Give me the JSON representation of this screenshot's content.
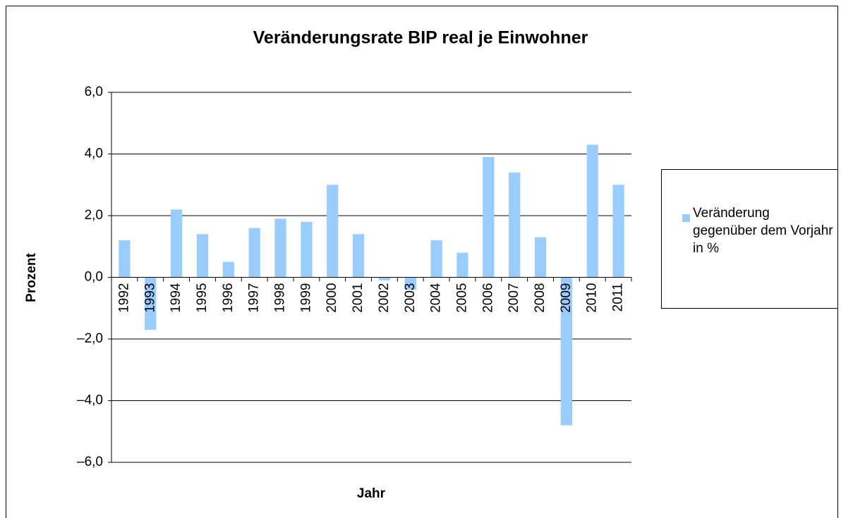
{
  "chart_data": {
    "type": "bar",
    "title": "Veränderungsrate BIP real je Einwohner",
    "x_label": "Jahr",
    "y_label": "Prozent",
    "categories": [
      "1992",
      "1993",
      "1994",
      "1995",
      "1996",
      "1997",
      "1998",
      "1999",
      "2000",
      "2001",
      "2002",
      "2003",
      "2004",
      "2005",
      "2006",
      "2007",
      "2008",
      "2009",
      "2010",
      "2011"
    ],
    "series": [
      {
        "name": "Veränderung gegenüber dem Vorjahr in %",
        "color": "#99ccff",
        "values": [
          1.2,
          -1.7,
          2.2,
          1.4,
          0.5,
          1.6,
          1.9,
          1.8,
          3.0,
          1.4,
          -0.1,
          -0.4,
          1.2,
          0.8,
          3.9,
          3.4,
          1.3,
          -4.8,
          4.3,
          3.0
        ]
      }
    ],
    "ylim": [
      -6,
      6
    ],
    "yticks": [
      {
        "value": -6,
        "label": "–6,0"
      },
      {
        "value": -4,
        "label": "–4,0"
      },
      {
        "value": -2,
        "label": "–2,0"
      },
      {
        "value": 0,
        "label": "0,0"
      },
      {
        "value": 2,
        "label": "2,0"
      },
      {
        "value": 4,
        "label": "4,0"
      },
      {
        "value": 6,
        "label": "6,0"
      }
    ],
    "grid": true,
    "legend": "right"
  }
}
